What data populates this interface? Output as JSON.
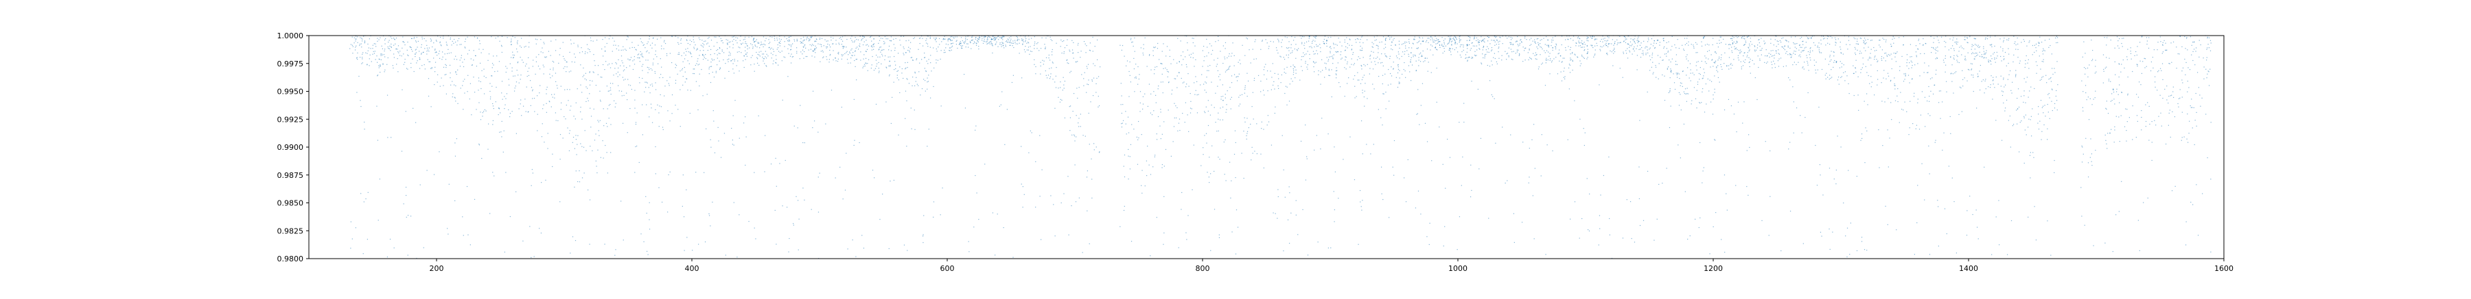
{
  "chart_data": {
    "type": "scatter",
    "title": "",
    "xlabel": "",
    "ylabel": "",
    "xlim": [
      100,
      1600
    ],
    "ylim": [
      0.98,
      1.0
    ],
    "grid": false,
    "legend": "none",
    "x_ticks": [
      200,
      400,
      600,
      800,
      1000,
      1200,
      1400,
      1600
    ],
    "x_tick_labels": [
      "200",
      "400",
      "600",
      "800",
      "1000",
      "1200",
      "1400",
      "1600"
    ],
    "y_ticks": [
      0.98,
      0.9825,
      0.985,
      0.9875,
      0.99,
      0.9925,
      0.995,
      0.9975,
      1.0
    ],
    "y_tick_labels": [
      "0.9800",
      "0.9825",
      "0.9850",
      "0.9875",
      "0.9900",
      "0.9925",
      "0.9950",
      "0.9975",
      "1.0000"
    ],
    "series": [
      {
        "color": "#1f77b4",
        "x_range": [
          132,
          1590
        ],
        "gaps": [
          [
            720,
            735
          ],
          [
            1470,
            1488
          ],
          [
            1500,
            1505
          ],
          [
            1590,
            1600
          ]
        ],
        "envelope": [
          [
            132,
            0.9985
          ],
          [
            150,
            0.996
          ],
          [
            175,
            0.9965
          ],
          [
            200,
            0.995
          ],
          [
            225,
            0.992
          ],
          [
            245,
            0.986
          ],
          [
            260,
            0.993
          ],
          [
            275,
            0.991
          ],
          [
            300,
            0.987
          ],
          [
            320,
            0.985
          ],
          [
            340,
            0.991
          ],
          [
            360,
            0.992
          ],
          [
            380,
            0.99
          ],
          [
            400,
            0.996
          ],
          [
            430,
            0.996
          ],
          [
            460,
            0.997
          ],
          [
            490,
            0.9975
          ],
          [
            520,
            0.9975
          ],
          [
            550,
            0.996
          ],
          [
            575,
            0.993
          ],
          [
            600,
            0.9985
          ],
          [
            630,
            0.999
          ],
          [
            660,
            0.9985
          ],
          [
            690,
            0.992
          ],
          [
            715,
            0.986
          ],
          [
            740,
            0.981
          ],
          [
            760,
            0.985
          ],
          [
            780,
            0.99
          ],
          [
            800,
            0.986
          ],
          [
            820,
            0.989
          ],
          [
            845,
            0.987
          ],
          [
            870,
            0.996
          ],
          [
            900,
            0.996
          ],
          [
            930,
            0.993
          ],
          [
            960,
            0.996
          ],
          [
            990,
            0.9985
          ],
          [
            1020,
            0.997
          ],
          [
            1050,
            0.9975
          ],
          [
            1080,
            0.996
          ],
          [
            1110,
            0.998
          ],
          [
            1140,
            0.998
          ],
          [
            1165,
            0.993
          ],
          [
            1190,
            0.992
          ],
          [
            1215,
            0.9965
          ],
          [
            1240,
            0.997
          ],
          [
            1270,
            0.997
          ],
          [
            1300,
            0.995
          ],
          [
            1330,
            0.993
          ],
          [
            1360,
            0.99
          ],
          [
            1390,
            0.995
          ],
          [
            1420,
            0.994
          ],
          [
            1450,
            0.988
          ],
          [
            1465,
            0.99
          ],
          [
            1490,
            0.985
          ],
          [
            1520,
            0.99
          ],
          [
            1550,
            0.99
          ],
          [
            1570,
            0.989
          ],
          [
            1590,
            0.995
          ]
        ],
        "background_noise_fraction": 0.18,
        "point_count": 6000
      }
    ]
  }
}
